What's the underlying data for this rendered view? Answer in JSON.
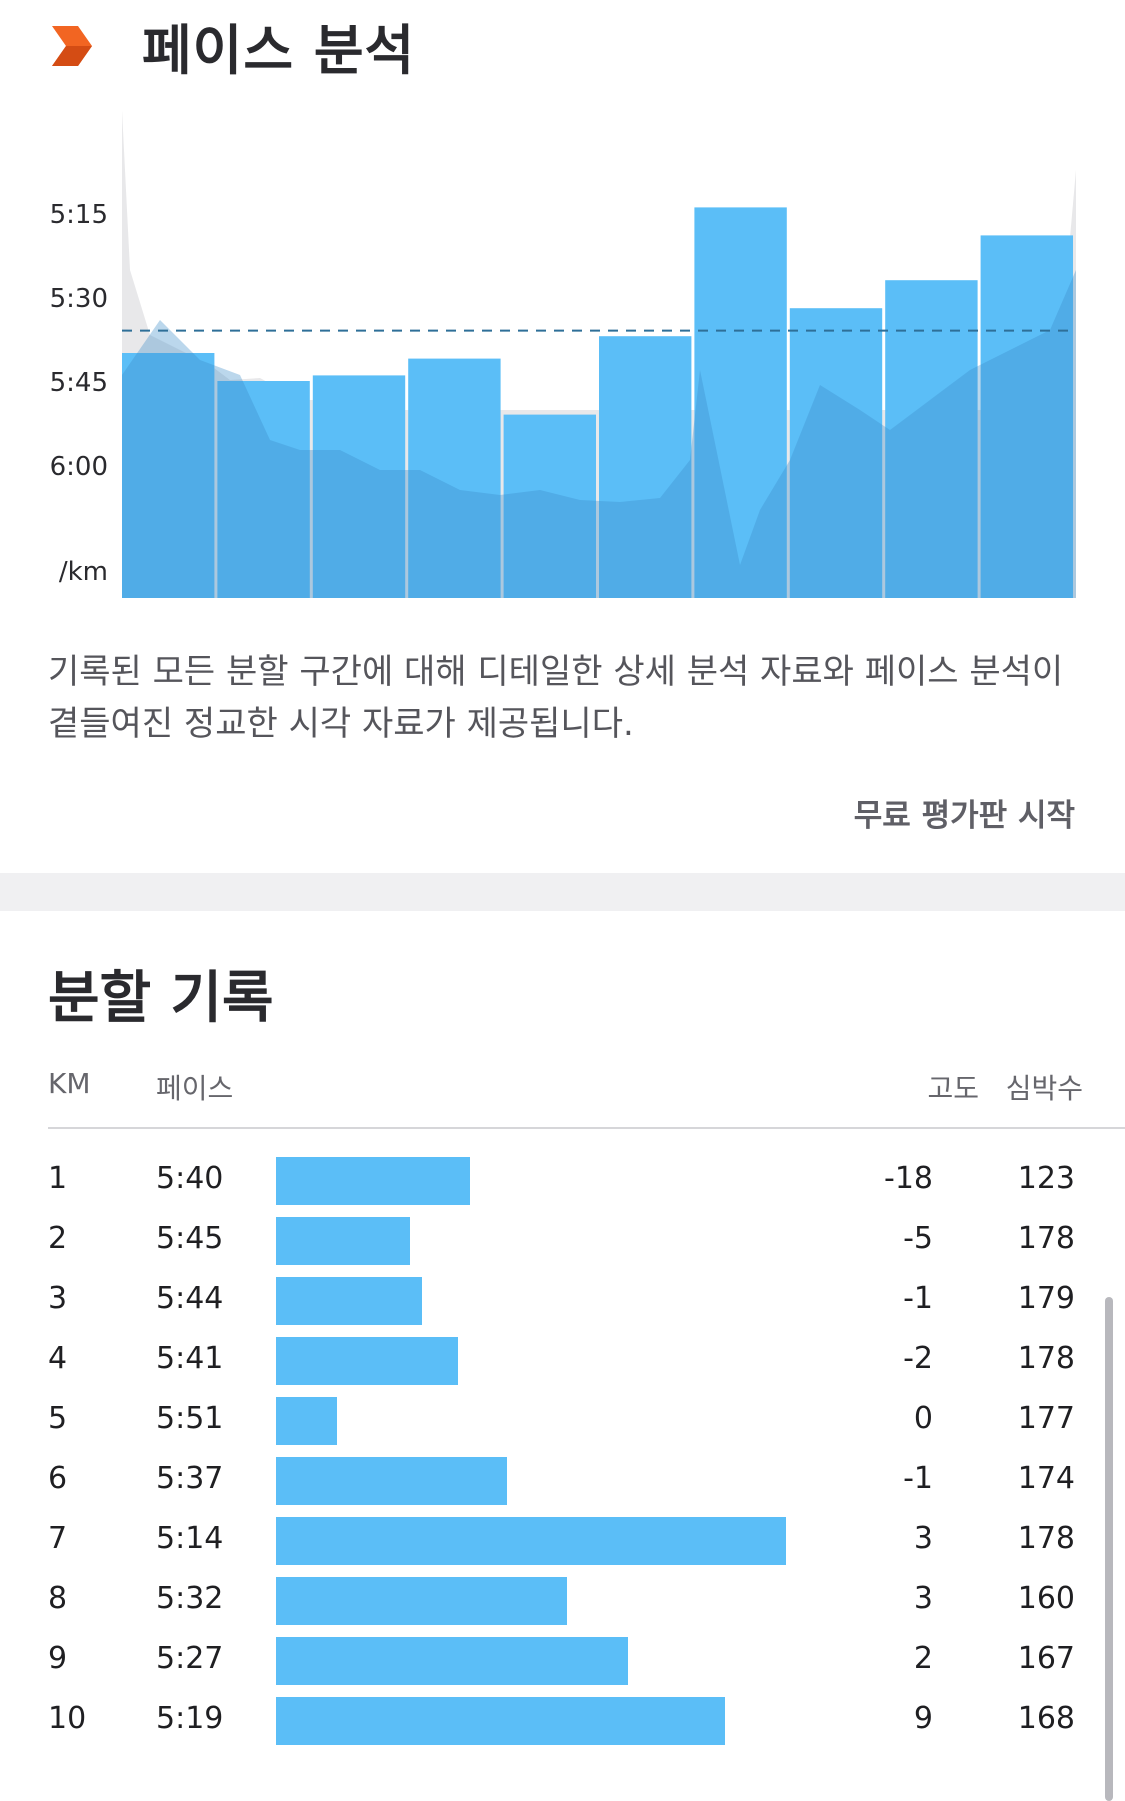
{
  "pace_section": {
    "title": "페이스 분석",
    "icon": "chevron-right-icon",
    "description": "기록된 모든 분할 구간에 대해 디테일한 상세 분석 자료와 페이스 분석이 곁들여진 정교한 시각 자료가 제공됩니다.",
    "trial_link": "무료 평가판 시작"
  },
  "chart_data": {
    "type": "bar",
    "categories": [
      "1",
      "2",
      "3",
      "4",
      "5",
      "6",
      "7",
      "8",
      "9",
      "10"
    ],
    "values": [
      "5:40",
      "5:45",
      "5:44",
      "5:41",
      "5:51",
      "5:37",
      "5:14",
      "5:32",
      "5:27",
      "5:19"
    ],
    "values_seconds": [
      340,
      345,
      344,
      341,
      351,
      337,
      314,
      332,
      327,
      319
    ],
    "average_line_seconds": 336,
    "y_ticks": [
      "5:15",
      "5:30",
      "5:45",
      "6:00"
    ],
    "y_tick_seconds": [
      315,
      330,
      345,
      360
    ],
    "y_unit_label": "/km",
    "y_inverted": true,
    "grid": false,
    "bar_color": "#5bbef7",
    "average_line_color": "#2e6f98"
  },
  "splits_section": {
    "title": "분할 기록",
    "columns": {
      "km": "KM",
      "pace": "페이스",
      "elevation": "고도",
      "heart_rate": "심박수"
    },
    "rows": [
      {
        "km": "1",
        "pace": "5:40",
        "pace_seconds": 340,
        "elevation": "-18",
        "heart_rate": "123"
      },
      {
        "km": "2",
        "pace": "5:45",
        "pace_seconds": 345,
        "elevation": "-5",
        "heart_rate": "178"
      },
      {
        "km": "3",
        "pace": "5:44",
        "pace_seconds": 344,
        "elevation": "-1",
        "heart_rate": "179"
      },
      {
        "km": "4",
        "pace": "5:41",
        "pace_seconds": 341,
        "elevation": "-2",
        "heart_rate": "178"
      },
      {
        "km": "5",
        "pace": "5:51",
        "pace_seconds": 351,
        "elevation": "0",
        "heart_rate": "177"
      },
      {
        "km": "6",
        "pace": "5:37",
        "pace_seconds": 337,
        "elevation": "-1",
        "heart_rate": "174"
      },
      {
        "km": "7",
        "pace": "5:14",
        "pace_seconds": 314,
        "elevation": "3",
        "heart_rate": "178"
      },
      {
        "km": "8",
        "pace": "5:32",
        "pace_seconds": 332,
        "elevation": "3",
        "heart_rate": "160"
      },
      {
        "km": "9",
        "pace": "5:27",
        "pace_seconds": 327,
        "elevation": "2",
        "heart_rate": "167"
      },
      {
        "km": "10",
        "pace": "5:19",
        "pace_seconds": 319,
        "elevation": "9",
        "heart_rate": "168"
      }
    ]
  },
  "colors": {
    "accent_orange": "#f26522",
    "bar_blue": "#5bbef7",
    "divider_gray": "#f0f0f2"
  }
}
